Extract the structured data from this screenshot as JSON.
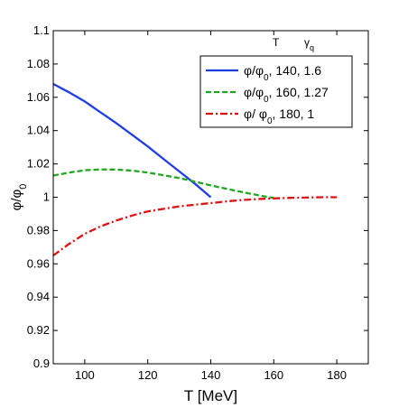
{
  "chart_data": {
    "type": "line",
    "xlabel": "T [MeV]",
    "ylabel_main": "φ/φ",
    "ylabel_sub": "0",
    "xlim": [
      90,
      190
    ],
    "ylim": [
      0.9,
      1.1
    ],
    "xticks": [
      100,
      120,
      140,
      160,
      180
    ],
    "yticks": [
      0.9,
      0.92,
      0.94,
      0.96,
      0.98,
      1,
      1.02,
      1.04,
      1.06,
      1.08,
      1.1
    ],
    "ytick_labels": [
      "0.9",
      "0.92",
      "0.94",
      "0.96",
      "0.98",
      "1",
      "1.02",
      "1.04",
      "1.06",
      "1.08",
      "1.1"
    ],
    "grid": false,
    "legend_position": "top-right",
    "legend_header": {
      "col1": "T",
      "col2_main": "γ",
      "col2_sub": "q"
    },
    "series": [
      {
        "legend_pre": "φ/φ",
        "legend_sub": "0",
        "legend_post": ", 140, 1.6",
        "color": "#1f3fe6",
        "dash": "solid",
        "x": [
          90,
          95,
          100,
          105,
          110,
          115,
          120,
          125,
          130,
          135,
          140
        ],
        "y": [
          1.068,
          1.063,
          1.0575,
          1.051,
          1.0445,
          1.0375,
          1.0305,
          1.023,
          1.0155,
          1.008,
          1.0
        ]
      },
      {
        "legend_pre": "φ/φ",
        "legend_sub": "0",
        "legend_post": ", 160, 1.27",
        "color": "#1fa81f",
        "dash": "dashed",
        "x": [
          90,
          95,
          100,
          105,
          110,
          115,
          120,
          125,
          130,
          135,
          140,
          145,
          150,
          155,
          160
        ],
        "y": [
          1.013,
          1.0148,
          1.0162,
          1.0167,
          1.0166,
          1.016,
          1.0148,
          1.0132,
          1.0115,
          1.0094,
          1.0071,
          1.0051,
          1.0031,
          1.0012,
          0.9995
        ]
      },
      {
        "legend_pre": "φ/ φ",
        "legend_sub": "0",
        "legend_post": ", 180, 1",
        "color": "#e01010",
        "dash": "dashdot",
        "x": [
          90,
          95,
          100,
          105,
          110,
          115,
          120,
          125,
          130,
          135,
          140,
          145,
          150,
          155,
          160,
          165,
          170,
          175,
          180
        ],
        "y": [
          0.965,
          0.972,
          0.978,
          0.9825,
          0.986,
          0.989,
          0.9915,
          0.993,
          0.9945,
          0.9955,
          0.9965,
          0.9975,
          0.9983,
          0.9989,
          0.9993,
          0.9996,
          0.9998,
          1.0,
          1.0
        ]
      }
    ]
  }
}
